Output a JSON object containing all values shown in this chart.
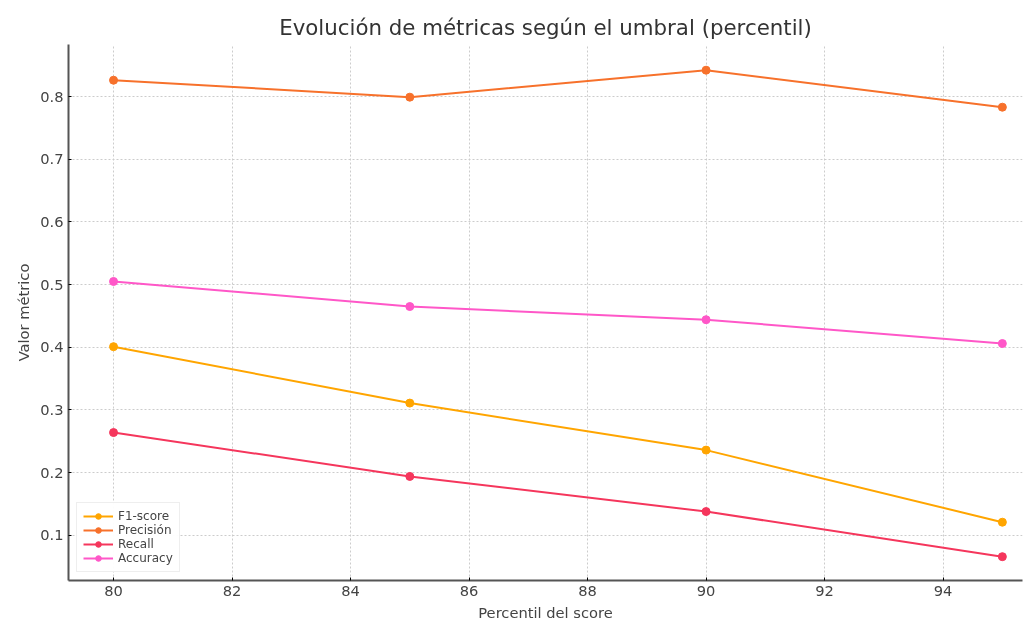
{
  "chart_data": {
    "type": "line",
    "title": "Evolución de métricas según el umbral (percentil)",
    "xlabel": "Percentil del score",
    "ylabel": "Valor métrico",
    "x": [
      80,
      85,
      90,
      95
    ],
    "series": [
      {
        "name": "F1-score",
        "color": "#ffa500",
        "values": [
          0.401,
          0.311,
          0.236,
          0.121
        ]
      },
      {
        "name": "Precisión",
        "color": "#f7712b",
        "values": [
          0.826,
          0.799,
          0.842,
          0.783
        ]
      },
      {
        "name": "Recall",
        "color": "#f5365c",
        "values": [
          0.264,
          0.194,
          0.138,
          0.066
        ]
      },
      {
        "name": "Accuracy",
        "color": "#ff57c8",
        "values": [
          0.505,
          0.465,
          0.444,
          0.406
        ]
      }
    ],
    "xlim": [
      79.24,
      95.34
    ],
    "ylim": [
      0.028,
      0.883
    ],
    "xticks": [
      80,
      82,
      84,
      86,
      88,
      90,
      92,
      94
    ],
    "yticks": [
      0.1,
      0.2,
      0.3,
      0.4,
      0.5,
      0.6,
      0.7,
      0.8
    ],
    "grid": true,
    "legend": "bottom left",
    "marker": "circle",
    "line_style": "solid"
  }
}
